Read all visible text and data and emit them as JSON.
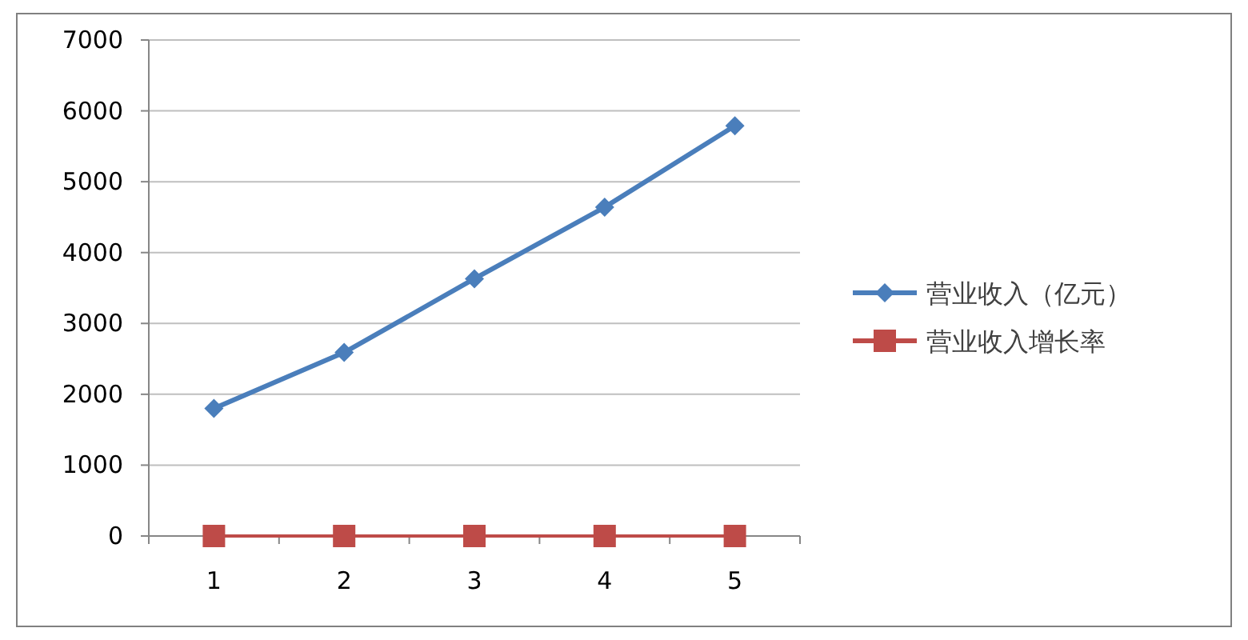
{
  "chart_data": {
    "type": "line",
    "categories": [
      "1",
      "2",
      "3",
      "4",
      "5"
    ],
    "series": [
      {
        "name": "营业收入（亿元）",
        "color": "#4a7ebb",
        "values": [
          1800,
          2590,
          3630,
          4640,
          5790
        ],
        "marker": "diamond"
      },
      {
        "name": "营业收入增长率",
        "color": "#be4b48",
        "values": [
          0,
          0,
          0,
          0,
          0
        ],
        "marker": "square"
      }
    ],
    "ylim": [
      0,
      7000
    ],
    "yticks": [
      0,
      1000,
      2000,
      3000,
      4000,
      5000,
      6000,
      7000
    ],
    "grid": "y",
    "legend": "right"
  }
}
